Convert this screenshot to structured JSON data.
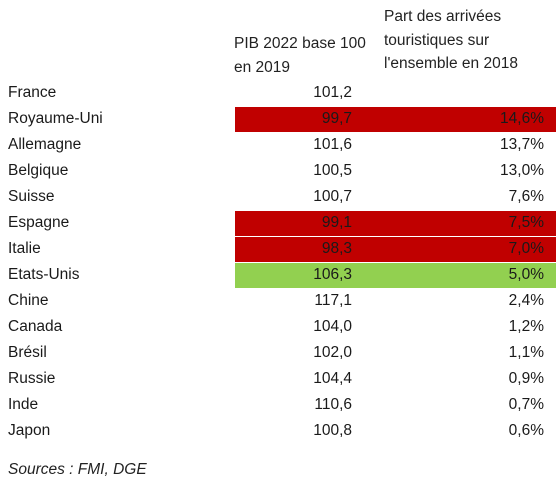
{
  "headers": {
    "pib_line1": "PIB 2022 base 100",
    "pib_line2": "en 2019",
    "part_line1": "Part des arrivées",
    "part_line2": "touristiques sur",
    "part_line3": "l'ensemble en 2018"
  },
  "colors": {
    "red_highlight": "#c00000",
    "green_highlight": "#92d050"
  },
  "rows": [
    {
      "country": "France",
      "pib": "101,2",
      "part": "",
      "highlight": "none"
    },
    {
      "country": "Royaume-Uni",
      "pib": "99,7",
      "part": "14,6%",
      "highlight": "red"
    },
    {
      "country": "Allemagne",
      "pib": "101,6",
      "part": "13,7%",
      "highlight": "none"
    },
    {
      "country": "Belgique",
      "pib": "100,5",
      "part": "13,0%",
      "highlight": "none"
    },
    {
      "country": "Suisse",
      "pib": "100,7",
      "part": "7,6%",
      "highlight": "none"
    },
    {
      "country": "Espagne",
      "pib": "99,1",
      "part": "7,5%",
      "highlight": "red"
    },
    {
      "country": "Italie",
      "pib": "98,3",
      "part": "7,0%",
      "highlight": "red"
    },
    {
      "country": "Etats-Unis",
      "pib": "106,3",
      "part": "5,0%",
      "highlight": "green"
    },
    {
      "country": "Chine",
      "pib": "117,1",
      "part": "2,4%",
      "highlight": "none"
    },
    {
      "country": "Canada",
      "pib": "104,0",
      "part": "1,2%",
      "highlight": "none"
    },
    {
      "country": "Brésil",
      "pib": "102,0",
      "part": "1,1%",
      "highlight": "none"
    },
    {
      "country": "Russie",
      "pib": "104,4",
      "part": "0,9%",
      "highlight": "none"
    },
    {
      "country": "Inde",
      "pib": "110,6",
      "part": "0,7%",
      "highlight": "none"
    },
    {
      "country": "Japon",
      "pib": "100,8",
      "part": "0,6%",
      "highlight": "none"
    }
  ],
  "source": "Sources : FMI, DGE"
}
